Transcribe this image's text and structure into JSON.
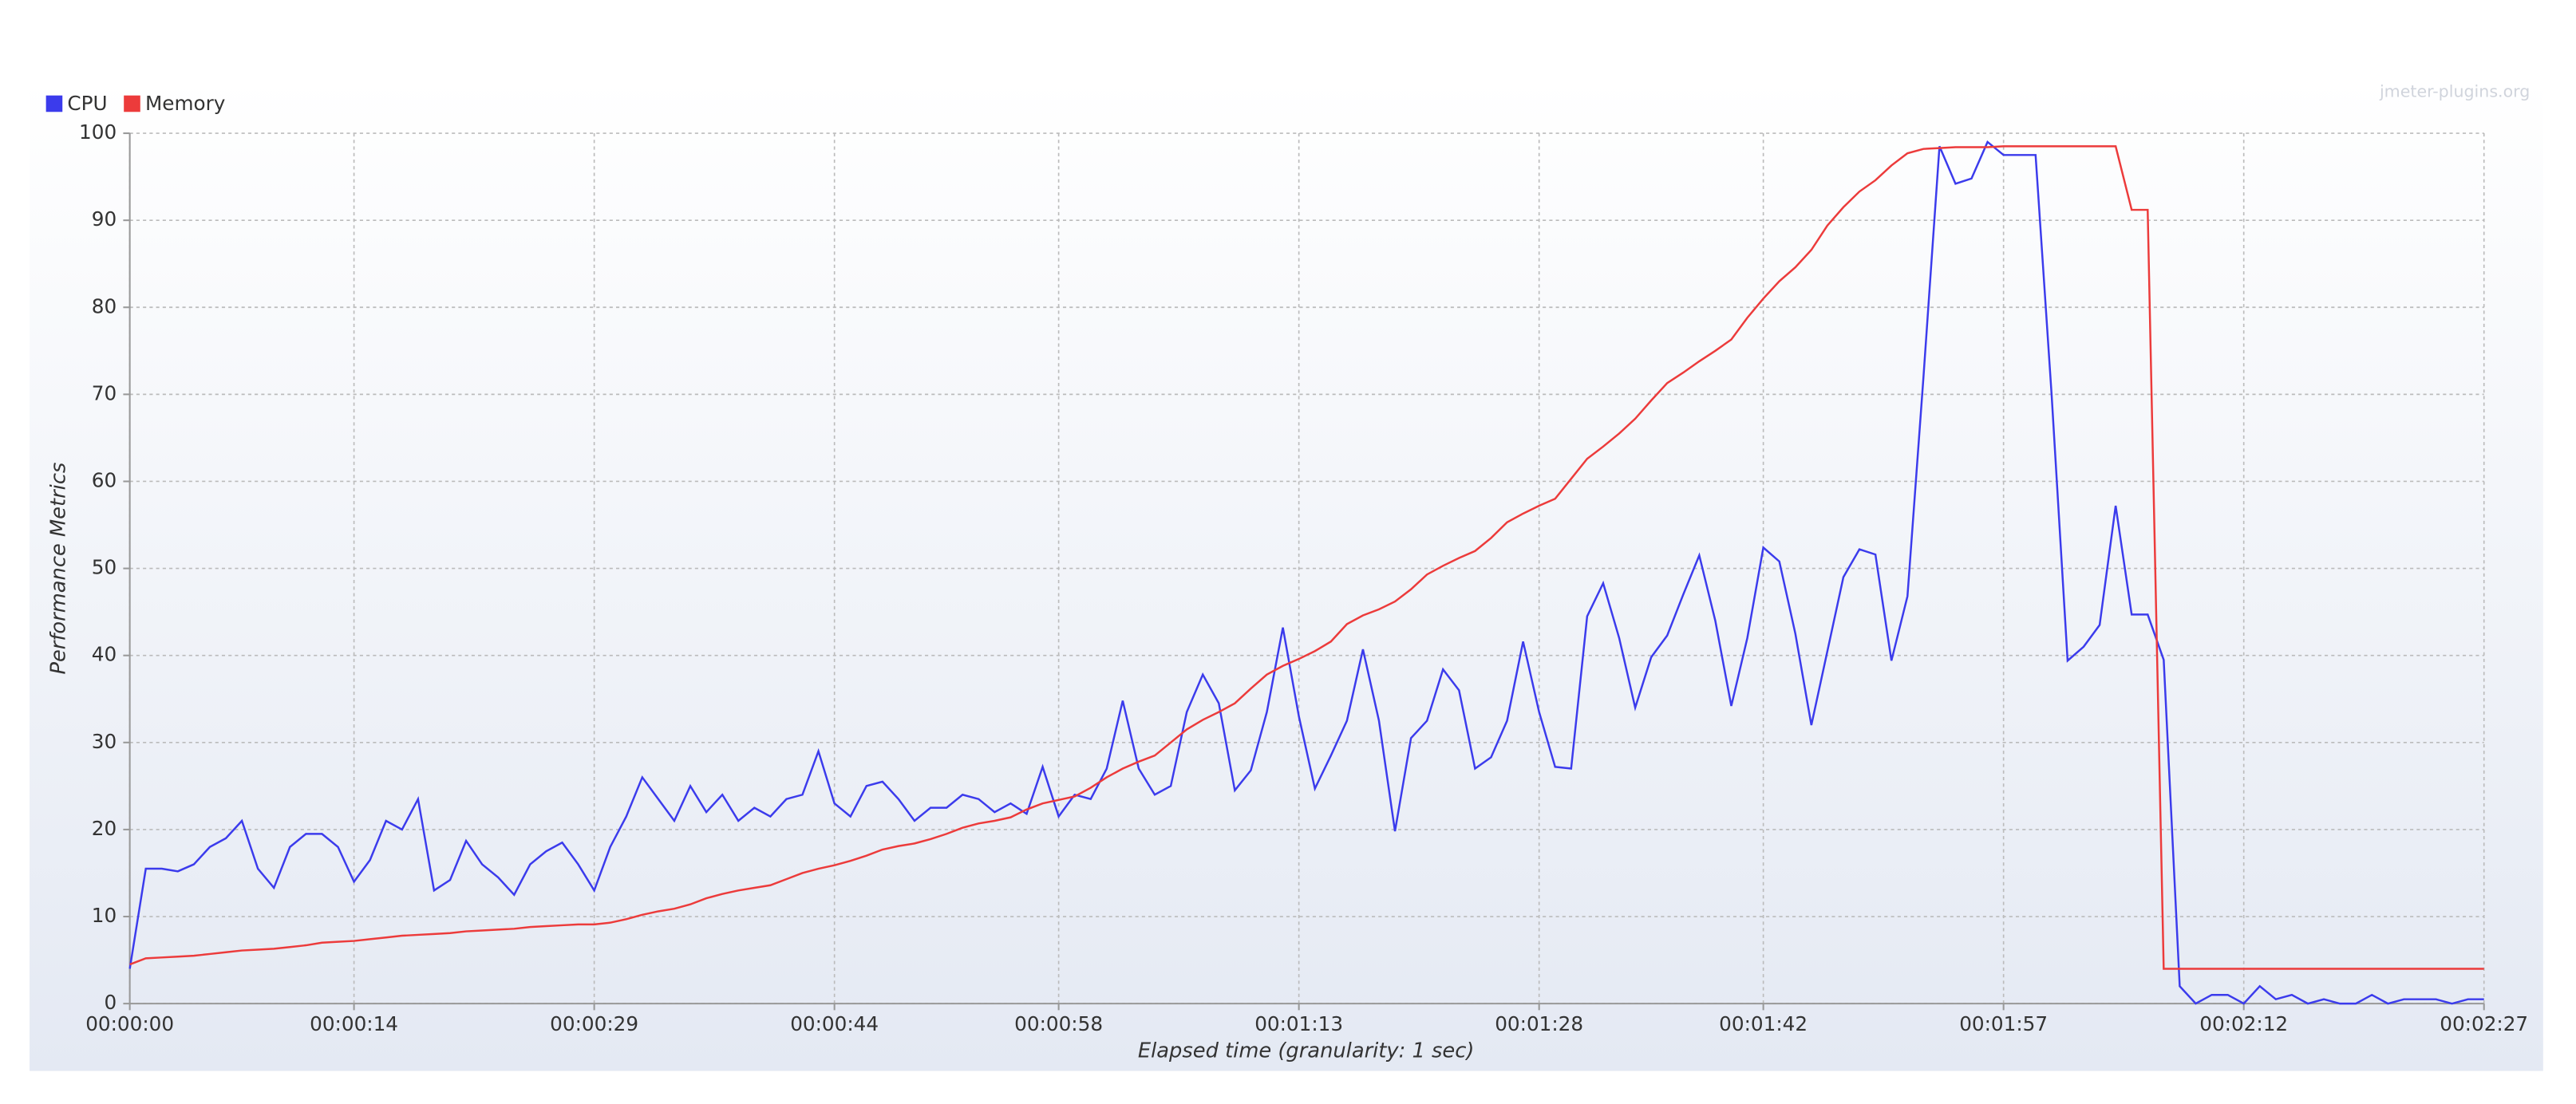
{
  "chart_data": {
    "type": "line",
    "watermark": "jmeter-plugins.org",
    "xlabel": "Elapsed time (granularity: 1 sec)",
    "ylabel": "Performance Metrics",
    "legend": "top-left",
    "grid": true,
    "xlim": [
      0,
      147
    ],
    "ylim": [
      0,
      100
    ],
    "xticks": [
      {
        "value": 0,
        "label": "00:00:00"
      },
      {
        "value": 14,
        "label": "00:00:14"
      },
      {
        "value": 29,
        "label": "00:00:29"
      },
      {
        "value": 44,
        "label": "00:00:44"
      },
      {
        "value": 58,
        "label": "00:00:58"
      },
      {
        "value": 73,
        "label": "00:01:13"
      },
      {
        "value": 88,
        "label": "00:01:28"
      },
      {
        "value": 102,
        "label": "00:01:42"
      },
      {
        "value": 117,
        "label": "00:01:57"
      },
      {
        "value": 132,
        "label": "00:02:12"
      },
      {
        "value": 147,
        "label": "00:02:27"
      }
    ],
    "yticks": [
      0,
      10,
      20,
      30,
      40,
      50,
      60,
      70,
      80,
      90,
      100
    ],
    "x": [
      0,
      1,
      2,
      3,
      4,
      5,
      6,
      7,
      8,
      9,
      10,
      11,
      12,
      13,
      14,
      15,
      16,
      17,
      18,
      19,
      20,
      21,
      22,
      23,
      24,
      25,
      26,
      27,
      28,
      29,
      30,
      31,
      32,
      33,
      34,
      35,
      36,
      37,
      38,
      39,
      40,
      41,
      42,
      43,
      44,
      45,
      46,
      47,
      48,
      49,
      50,
      51,
      52,
      53,
      54,
      55,
      56,
      57,
      58,
      59,
      60,
      61,
      62,
      63,
      64,
      65,
      66,
      67,
      68,
      69,
      70,
      71,
      72,
      73,
      74,
      75,
      76,
      77,
      78,
      79,
      80,
      81,
      82,
      83,
      84,
      85,
      86,
      87,
      88,
      89,
      90,
      91,
      92,
      93,
      94,
      95,
      96,
      97,
      98,
      99,
      100,
      101,
      102,
      103,
      104,
      105,
      106,
      107,
      108,
      109,
      110,
      111,
      112,
      113,
      114,
      115,
      116,
      117,
      118,
      119,
      120,
      121,
      122,
      123,
      124,
      125,
      126,
      127,
      128,
      129,
      130,
      131,
      132,
      133,
      134,
      135,
      136,
      137,
      138,
      139,
      140,
      141,
      142,
      143,
      144,
      145,
      146,
      147
    ],
    "series": [
      {
        "name": "CPU",
        "color": "#3b3bec",
        "values": [
          4,
          15.5,
          15.5,
          15.2,
          16,
          18,
          19,
          21,
          15.5,
          13.3,
          18,
          19.5,
          19.5,
          18,
          14,
          16.5,
          21,
          20,
          23.5,
          13,
          14.2,
          18.7,
          16,
          14.5,
          12.5,
          16,
          17.5,
          18.5,
          16,
          13,
          18,
          21.5,
          26,
          23.5,
          21,
          25,
          22,
          24,
          21,
          22.5,
          21.5,
          23.5,
          24,
          29,
          23,
          21.5,
          25,
          25.5,
          23.5,
          21,
          22.5,
          22.5,
          24,
          23.5,
          22,
          23,
          21.8,
          27.2,
          21.5,
          24,
          23.5,
          27,
          34.8,
          27,
          24,
          25,
          33.5,
          37.8,
          34.5,
          24.5,
          26.8,
          33.5,
          43.2,
          33,
          24.7,
          28.5,
          32.5,
          40.7,
          32.5,
          19.8,
          30.5,
          32.5,
          38.4,
          36,
          27,
          28.3,
          32.5,
          41.6,
          33.5,
          27.2,
          27,
          44.5,
          48.3,
          42,
          34,
          39.8,
          42.3,
          47,
          51.5,
          44,
          34.2,
          42,
          52.4,
          50.8,
          42.5,
          32,
          40.5,
          49,
          52.2,
          51.6,
          39.4,
          46.8,
          72,
          98.5,
          94.2,
          94.8,
          99,
          97.5,
          97.5,
          97.5,
          70,
          39.4,
          41,
          43.5,
          57.2,
          44.7,
          44.7,
          39.5,
          2,
          0,
          1,
          1,
          0,
          2,
          0.5,
          1,
          0,
          0.5,
          0,
          0,
          1,
          0,
          0.5,
          0.5,
          0.5,
          0,
          0.5,
          0.5
        ]
      },
      {
        "name": "Memory",
        "color": "#ec3b3b",
        "values": [
          4.5,
          5.2,
          5.3,
          5.4,
          5.5,
          5.7,
          5.9,
          6.1,
          6.2,
          6.3,
          6.5,
          6.7,
          7,
          7.1,
          7.2,
          7.4,
          7.6,
          7.8,
          7.9,
          8,
          8.1,
          8.3,
          8.4,
          8.5,
          8.6,
          8.8,
          8.9,
          9,
          9.1,
          9.1,
          9.3,
          9.7,
          10.2,
          10.6,
          10.9,
          11.4,
          12.1,
          12.6,
          13,
          13.3,
          13.6,
          14.3,
          15,
          15.5,
          15.9,
          16.4,
          17,
          17.7,
          18.1,
          18.4,
          18.9,
          19.5,
          20.2,
          20.7,
          21,
          21.4,
          22.3,
          23,
          23.4,
          23.8,
          24.8,
          26,
          27,
          27.8,
          28.5,
          30,
          31.5,
          32.6,
          33.5,
          34.5,
          36.2,
          37.8,
          38.8,
          39.6,
          40.5,
          41.6,
          43.6,
          44.6,
          45.3,
          46.2,
          47.6,
          49.3,
          50.3,
          51.2,
          52,
          53.5,
          55.3,
          56.3,
          57.2,
          58,
          60.3,
          62.6,
          64,
          65.5,
          67.2,
          69.3,
          71.3,
          72.5,
          73.8,
          75,
          76.3,
          78.8,
          81,
          83,
          84.6,
          86.6,
          89.4,
          91.5,
          93.3,
          94.6,
          96.3,
          97.7,
          98.2,
          98.3,
          98.4,
          98.4,
          98.4,
          98.5,
          98.5,
          98.5,
          98.5,
          98.5,
          98.5,
          98.5,
          98.5,
          91.2,
          91.2,
          4,
          4,
          4,
          4,
          4,
          4,
          4,
          4,
          4,
          4,
          4,
          4,
          4,
          4,
          4,
          4,
          4,
          4,
          4,
          4,
          4
        ]
      }
    ]
  }
}
